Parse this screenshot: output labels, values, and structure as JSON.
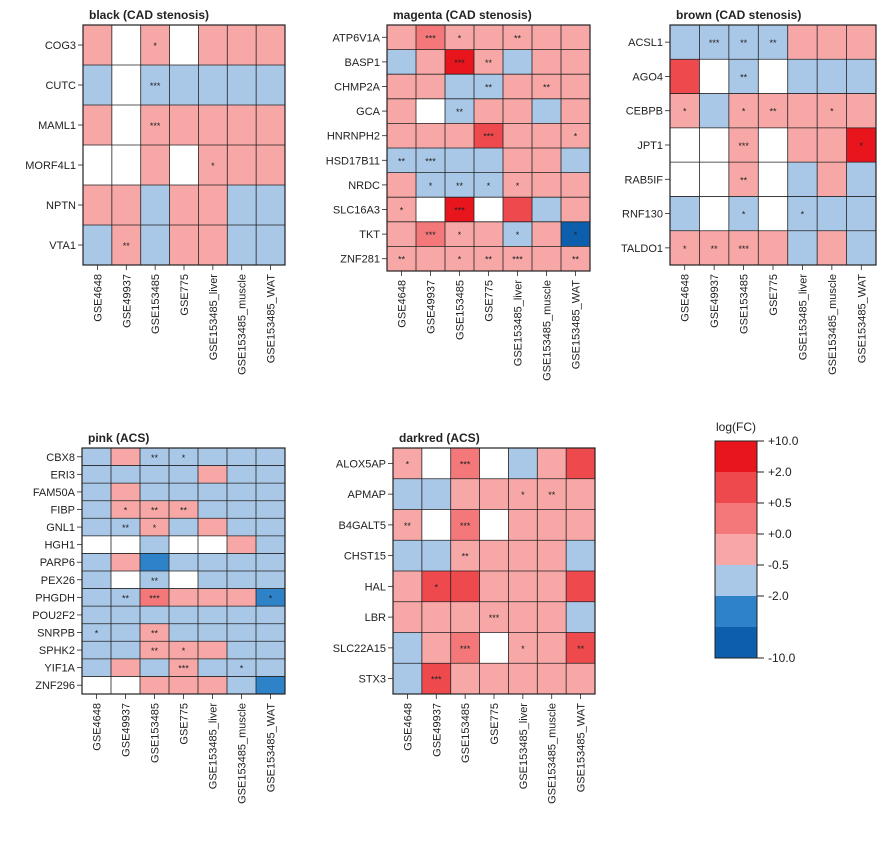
{
  "chart_data": {
    "type": "heatmap",
    "columns": [
      "GSE4648",
      "GSE49937",
      "GSE153485",
      "GSE775",
      "GSE153485_liver",
      "GSE153485_muscle",
      "GSE153485_WAT"
    ],
    "palette": {
      "+10.0": "#e8151d",
      "+2.0": "#ee4a4d",
      "+0.5": "#f4787a",
      "+0.0": "#f7a7a6",
      "-0.5": "#a9c7e6",
      "-2.0": "#2e83c8",
      "-10.0": "#0d5fae",
      "blank": "#ffffff"
    },
    "legend": {
      "title": "log(FC)",
      "labels": [
        "+10.0",
        "+2.0",
        "+0.5",
        "+0.0",
        "-0.5",
        "-2.0",
        "-10.0"
      ],
      "colors": [
        "#e8151d",
        "#ee4a4d",
        "#f4787a",
        "#f7a7a6",
        "#a9c7e6",
        "#2e83c8",
        "#0d5fae"
      ]
    },
    "panels": [
      {
        "title": "black (CAD stenosis)",
        "rows": [
          "COG3",
          "CUTC",
          "MAML1",
          "MORF4L1",
          "NPTN",
          "VTA1"
        ],
        "levels": [
          [
            1,
            0,
            1,
            0,
            1,
            1,
            1
          ],
          [
            -1,
            0,
            -1,
            -1,
            -1,
            -1,
            -1
          ],
          [
            1,
            0,
            1,
            1,
            1,
            1,
            1
          ],
          [
            0,
            0,
            1,
            0,
            1,
            1,
            1
          ],
          [
            1,
            1,
            -1,
            1,
            1,
            -1,
            -1
          ],
          [
            -1,
            1,
            -1,
            1,
            1,
            -1,
            -1
          ]
        ],
        "stars": [
          [
            "",
            "",
            "*",
            "",
            "",
            "",
            ""
          ],
          [
            "",
            "",
            "***",
            "",
            "",
            "",
            ""
          ],
          [
            "",
            "",
            "***",
            "",
            "",
            "",
            ""
          ],
          [
            "",
            "",
            "",
            "",
            "*",
            "",
            ""
          ],
          [
            "",
            "",
            "",
            "",
            "",
            "",
            ""
          ],
          [
            "",
            "**",
            "",
            "",
            "",
            "",
            ""
          ]
        ]
      },
      {
        "title": "magenta (CAD stenosis)",
        "rows": [
          "ATP6V1A",
          "BASP1",
          "CHMP2A",
          "GCA",
          "HNRNPH2",
          "HSD17B11",
          "NRDC",
          "SLC16A3",
          "TKT",
          "ZNF281"
        ],
        "levels": [
          [
            1,
            2,
            1,
            1,
            1,
            1,
            1
          ],
          [
            -1,
            1,
            4,
            1,
            -1,
            1,
            1
          ],
          [
            1,
            1,
            -1,
            -1,
            1,
            1,
            1
          ],
          [
            1,
            0,
            -1,
            1,
            1,
            -1,
            1
          ],
          [
            1,
            1,
            1,
            3,
            1,
            1,
            1
          ],
          [
            -1,
            -1,
            -1,
            -1,
            1,
            1,
            -1
          ],
          [
            1,
            -1,
            -1,
            -1,
            1,
            1,
            1
          ],
          [
            1,
            0,
            4,
            0,
            3,
            -1,
            1
          ],
          [
            1,
            2,
            1,
            1,
            -1,
            1,
            -3
          ],
          [
            1,
            1,
            1,
            1,
            1,
            1,
            1
          ]
        ],
        "stars": [
          [
            "",
            "***",
            "*",
            "",
            "**",
            "",
            ""
          ],
          [
            "",
            "",
            "***",
            "**",
            "",
            "",
            ""
          ],
          [
            "",
            "",
            "",
            "**",
            "",
            "**",
            ""
          ],
          [
            "",
            "",
            "**",
            "",
            "",
            "",
            ""
          ],
          [
            "",
            "",
            "",
            "***",
            "",
            "",
            "*"
          ],
          [
            "**",
            "***",
            "",
            "",
            "",
            "",
            ""
          ],
          [
            "",
            "*",
            "**",
            "*",
            "*",
            "",
            ""
          ],
          [
            "*",
            "",
            "***",
            "",
            "",
            "",
            ""
          ],
          [
            "",
            "***",
            "*",
            "",
            "*",
            "",
            "*"
          ],
          [
            "**",
            "",
            "*",
            "**",
            "***",
            "",
            "**"
          ]
        ]
      },
      {
        "title": "brown (CAD stenosis)",
        "rows": [
          "ACSL1",
          "AGO4",
          "CEBPB",
          "JPT1",
          "RAB5IF",
          "RNF130",
          "TALDO1"
        ],
        "levels": [
          [
            -1,
            -1,
            -1,
            -1,
            1,
            1,
            1
          ],
          [
            3,
            0,
            -1,
            0,
            -1,
            -1,
            -1
          ],
          [
            1,
            -1,
            1,
            1,
            1,
            1,
            1
          ],
          [
            0,
            0,
            1,
            0,
            1,
            1,
            4
          ],
          [
            0,
            0,
            1,
            0,
            -1,
            1,
            -1
          ],
          [
            -1,
            0,
            -1,
            0,
            -1,
            -1,
            -1
          ],
          [
            1,
            1,
            1,
            1,
            -1,
            1,
            -1
          ]
        ],
        "stars": [
          [
            "",
            "***",
            "**",
            "**",
            "",
            "",
            ""
          ],
          [
            "",
            "",
            "**",
            "",
            "",
            "",
            ""
          ],
          [
            "*",
            "",
            "*",
            "**",
            "",
            "*",
            ""
          ],
          [
            "",
            "",
            "***",
            "",
            "",
            "",
            "*"
          ],
          [
            "",
            "",
            "**",
            "",
            "",
            "",
            ""
          ],
          [
            "",
            "",
            "*",
            "",
            "*",
            "",
            ""
          ],
          [
            "*",
            "**",
            "***",
            "",
            "",
            "",
            ""
          ]
        ]
      },
      {
        "title": "pink (ACS)",
        "rows": [
          "CBX8",
          "ERI3",
          "FAM50A",
          "FIBP",
          "GNL1",
          "HGH1",
          "PARP6",
          "PEX26",
          "PHGDH",
          "POU2F2",
          "SNRPB",
          "SPHK2",
          "YIF1A",
          "ZNF296"
        ],
        "levels": [
          [
            -1,
            1,
            -1,
            -1,
            -1,
            -1,
            -1
          ],
          [
            -1,
            -1,
            -1,
            -1,
            1,
            -1,
            -1
          ],
          [
            -1,
            1,
            -1,
            -1,
            -1,
            -1,
            -1
          ],
          [
            -1,
            1,
            1,
            1,
            -1,
            -1,
            -1
          ],
          [
            -1,
            -1,
            1,
            -1,
            1,
            -1,
            -1
          ],
          [
            0,
            0,
            -1,
            0,
            0,
            1,
            -1
          ],
          [
            -1,
            1,
            -2,
            -1,
            -1,
            -1,
            -1
          ],
          [
            -1,
            0,
            -1,
            0,
            -1,
            -1,
            -1
          ],
          [
            -1,
            -1,
            2,
            1,
            1,
            1,
            -2
          ],
          [
            -1,
            -1,
            -1,
            -1,
            -1,
            -1,
            -1
          ],
          [
            -1,
            -1,
            1,
            -1,
            -1,
            -1,
            -1
          ],
          [
            -1,
            -1,
            1,
            1,
            1,
            -1,
            -1
          ],
          [
            -1,
            1,
            -1,
            1,
            -1,
            -1,
            -1
          ],
          [
            0,
            0,
            1,
            1,
            1,
            -1,
            -2
          ]
        ],
        "stars": [
          [
            "",
            "",
            "**",
            "*",
            "",
            "",
            ""
          ],
          [
            "",
            "",
            "",
            "",
            "",
            "",
            ""
          ],
          [
            "",
            "",
            "",
            "",
            "",
            "",
            ""
          ],
          [
            "",
            "*",
            "**",
            "**",
            "",
            "",
            ""
          ],
          [
            "",
            "**",
            "*",
            "",
            "",
            "",
            ""
          ],
          [
            "",
            "",
            "",
            "",
            "",
            "",
            ""
          ],
          [
            "",
            "",
            "",
            "",
            "",
            "",
            ""
          ],
          [
            "",
            "",
            "**",
            "",
            "",
            "",
            ""
          ],
          [
            "",
            "**",
            "***",
            "",
            "",
            "",
            "*"
          ],
          [
            "",
            "",
            "",
            "",
            "",
            "",
            ""
          ],
          [
            "*",
            "",
            "**",
            "",
            "",
            "",
            ""
          ],
          [
            "",
            "",
            "**",
            "*",
            "",
            "",
            ""
          ],
          [
            "",
            "",
            "",
            "***",
            "",
            "*",
            ""
          ],
          [
            "",
            "",
            "",
            "",
            "",
            "",
            ""
          ]
        ]
      },
      {
        "title": "darkred (ACS)",
        "rows": [
          "ALOX5AP",
          "APMAP",
          "B4GALT5",
          "CHST15",
          "HAL",
          "LBR",
          "SLC22A15",
          "STX3"
        ],
        "levels": [
          [
            1,
            0,
            2,
            0,
            -1,
            1,
            3
          ],
          [
            -1,
            -1,
            1,
            1,
            1,
            1,
            1
          ],
          [
            1,
            0,
            2,
            0,
            1,
            1,
            1
          ],
          [
            -1,
            -1,
            1,
            1,
            1,
            1,
            -1
          ],
          [
            1,
            3,
            3,
            1,
            1,
            1,
            3
          ],
          [
            1,
            1,
            1,
            1,
            1,
            1,
            -1
          ],
          [
            -1,
            1,
            2,
            0,
            1,
            1,
            3
          ],
          [
            -1,
            3,
            1,
            1,
            1,
            1,
            1
          ]
        ],
        "stars": [
          [
            "*",
            "",
            "***",
            "",
            "",
            "",
            ""
          ],
          [
            "",
            "",
            "",
            "",
            "*",
            "**",
            ""
          ],
          [
            "**",
            "",
            "***",
            "",
            "",
            "",
            ""
          ],
          [
            "",
            "",
            "**",
            "",
            "",
            "",
            ""
          ],
          [
            "",
            "*",
            "",
            "",
            "",
            "",
            ""
          ],
          [
            "",
            "",
            "",
            "***",
            "",
            "",
            ""
          ],
          [
            "",
            "",
            "***",
            "",
            "*",
            "",
            "**"
          ],
          [
            "",
            "***",
            "",
            "",
            "",
            "",
            ""
          ]
        ]
      }
    ]
  }
}
